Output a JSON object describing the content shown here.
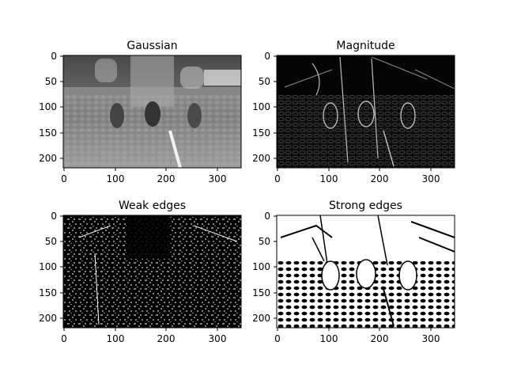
{
  "figure": {
    "panels": [
      {
        "title": "Gaussian",
        "image": "grayscale-blurred-photo",
        "xticks": [
          "0",
          "100",
          "200",
          "300"
        ],
        "yticks": [
          "0",
          "50",
          "100",
          "150",
          "200"
        ]
      },
      {
        "title": "Magnitude",
        "image": "gradient-magnitude-map",
        "xticks": [
          "0",
          "100",
          "200",
          "300"
        ],
        "yticks": [
          "0",
          "50",
          "100",
          "150",
          "200"
        ]
      },
      {
        "title": "Weak edges",
        "image": "weak-edge-binary-map",
        "xticks": [
          "0",
          "100",
          "200",
          "300"
        ],
        "yticks": [
          "0",
          "50",
          "100",
          "150",
          "200"
        ]
      },
      {
        "title": "Strong edges",
        "image": "strong-edge-binary-map",
        "xticks": [
          "0",
          "100",
          "200",
          "300"
        ],
        "yticks": [
          "0",
          "50",
          "100",
          "150",
          "200"
        ]
      }
    ]
  }
}
